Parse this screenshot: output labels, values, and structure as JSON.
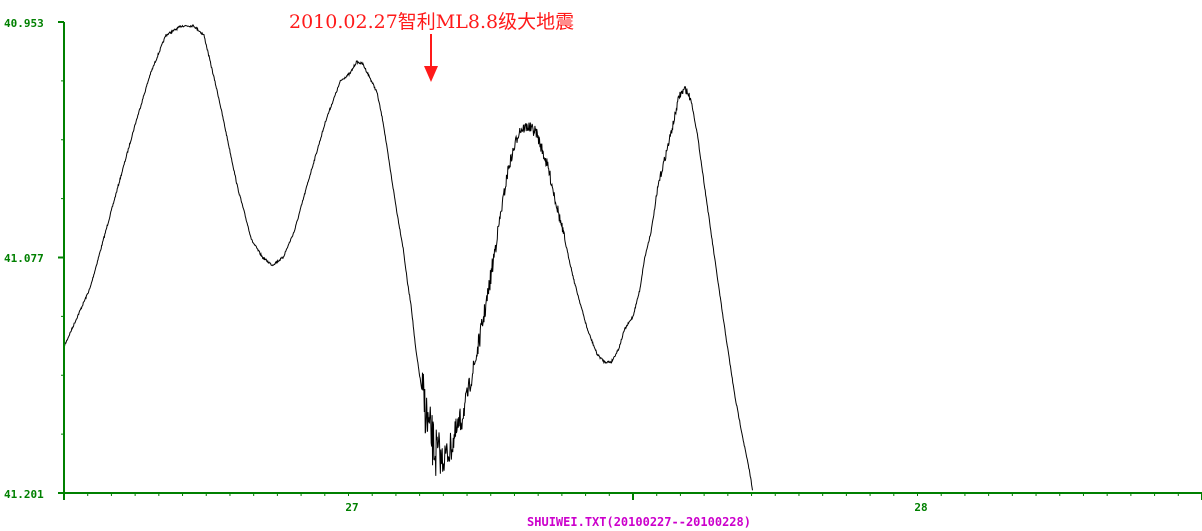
{
  "chart_data": {
    "type": "line",
    "xlabel": "SHUIWEI.TXT(20100227--20100228)",
    "ylabel": "",
    "x_unit": "day",
    "xlim": [
      26.5,
      28.5
    ],
    "ylim": [
      41.201,
      40.953
    ],
    "y_inverted": true,
    "ytick_labels": [
      "40.953",
      "41.077",
      "41.201"
    ],
    "yticks": [
      40.953,
      41.077,
      41.201
    ],
    "xtick_labels": [
      "27",
      "28"
    ],
    "xticks": [
      27.0,
      28.0
    ],
    "grid": false,
    "series_color": "#000000",
    "axis_color": "#008000",
    "annotation": {
      "text": "2010.02.27智利ML8.8级大地震",
      "x": 27.14,
      "color": "#ff1a1a"
    },
    "series": [
      {
        "values": [
          [
            26.5,
            41.124
          ],
          [
            26.546,
            41.093
          ],
          [
            26.59,
            41.045
          ],
          [
            26.625,
            41.007
          ],
          [
            26.651,
            40.981
          ],
          [
            26.679,
            40.96
          ],
          [
            26.707,
            40.955
          ],
          [
            26.728,
            40.955
          ],
          [
            26.746,
            40.96
          ],
          [
            26.772,
            40.993
          ],
          [
            26.805,
            41.04
          ],
          [
            26.83,
            41.068
          ],
          [
            26.849,
            41.077
          ],
          [
            26.866,
            41.081
          ],
          [
            26.885,
            41.077
          ],
          [
            26.905,
            41.063
          ],
          [
            26.931,
            41.035
          ],
          [
            26.961,
            41.004
          ],
          [
            26.986,
            40.984
          ],
          [
            27.003,
            40.98
          ],
          [
            27.014,
            40.974
          ],
          [
            27.025,
            40.975
          ],
          [
            27.037,
            40.982
          ],
          [
            27.05,
            40.99
          ],
          [
            27.061,
            41.006
          ],
          [
            27.072,
            41.028
          ],
          [
            27.085,
            41.053
          ],
          [
            27.096,
            41.072
          ],
          [
            27.104,
            41.091
          ],
          [
            27.11,
            41.102
          ],
          [
            27.118,
            41.125
          ],
          [
            27.128,
            41.145
          ],
          [
            27.14,
            41.165
          ],
          [
            27.152,
            41.179
          ],
          [
            27.163,
            41.184
          ],
          [
            27.177,
            41.179
          ],
          [
            27.199,
            41.162
          ],
          [
            27.224,
            41.13
          ],
          [
            27.246,
            41.095
          ],
          [
            27.262,
            41.064
          ],
          [
            27.281,
            41.03
          ],
          [
            27.3,
            41.01
          ],
          [
            27.315,
            41.008
          ],
          [
            27.33,
            41.011
          ],
          [
            27.351,
            41.03
          ],
          [
            27.374,
            41.06
          ],
          [
            27.397,
            41.09
          ],
          [
            27.42,
            41.115
          ],
          [
            27.437,
            41.128
          ],
          [
            27.45,
            41.132
          ],
          [
            27.462,
            41.132
          ],
          [
            27.475,
            41.125
          ],
          [
            27.485,
            41.115
          ],
          [
            27.5,
            41.108
          ],
          [
            27.512,
            41.094
          ],
          [
            27.52,
            41.078
          ],
          [
            27.532,
            41.063
          ],
          [
            27.545,
            41.038
          ],
          [
            27.56,
            41.02
          ],
          [
            27.572,
            41.005
          ],
          [
            27.581,
            40.992
          ],
          [
            27.592,
            40.988
          ],
          [
            27.602,
            40.994
          ],
          [
            27.613,
            41.012
          ],
          [
            27.626,
            41.04
          ],
          [
            27.64,
            41.07
          ],
          [
            27.658,
            41.108
          ],
          [
            27.679,
            41.15
          ],
          [
            27.695,
            41.175
          ],
          [
            27.705,
            41.19
          ],
          [
            27.71,
            41.199
          ]
        ]
      }
    ],
    "noise": [
      {
        "x_start": 27.13,
        "x_end": 27.16,
        "amplitude": 0.014
      },
      {
        "x_start": 27.16,
        "x_end": 27.2,
        "amplitude": 0.008
      },
      {
        "x_start": 27.2,
        "x_end": 27.26,
        "amplitude": 0.005
      },
      {
        "x_start": 27.26,
        "x_end": 27.32,
        "amplitude": 0.003
      },
      {
        "x_start": 27.32,
        "x_end": 27.38,
        "amplitude": 0.003
      },
      {
        "x_start": 27.54,
        "x_end": 27.6,
        "amplitude": 0.002
      }
    ]
  }
}
